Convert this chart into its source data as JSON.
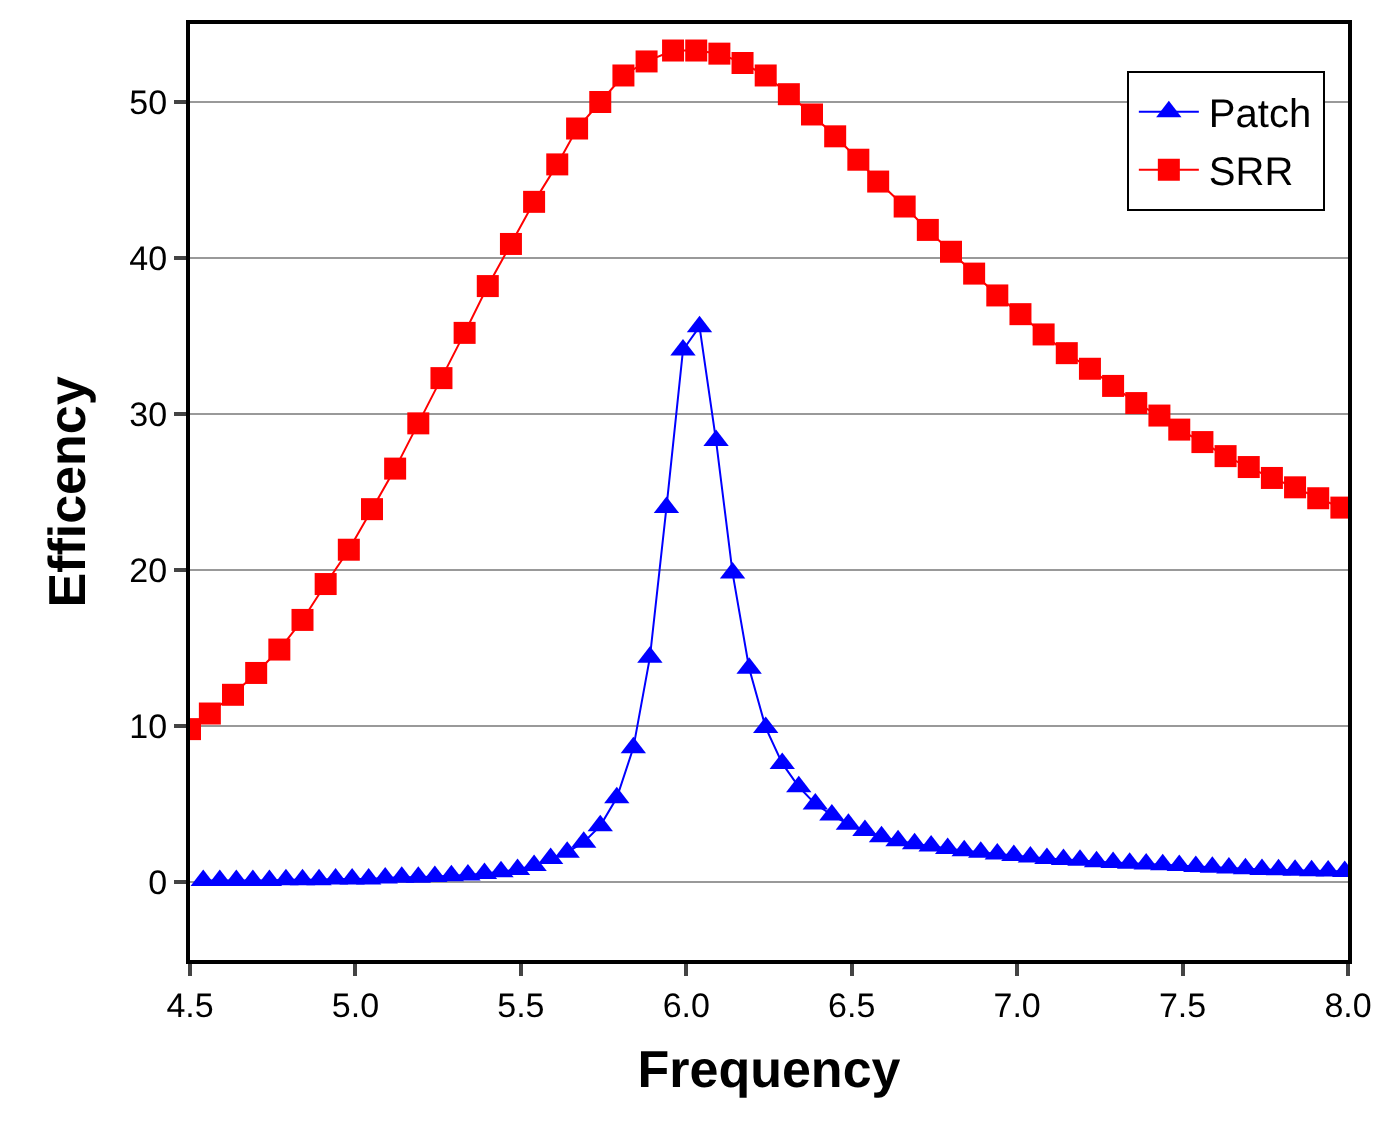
{
  "chart_data": {
    "type": "line",
    "xlabel": "Frequency",
    "ylabel": "Efficency",
    "xlim": [
      4.5,
      8.0
    ],
    "xticks": [
      {
        "value": 4.5,
        "label": "4.5"
      },
      {
        "value": 5.0,
        "label": "5.0"
      },
      {
        "value": 5.5,
        "label": "5.5"
      },
      {
        "value": 6.0,
        "label": "6.0"
      },
      {
        "value": 6.5,
        "label": "6.5"
      },
      {
        "value": 7.0,
        "label": "7.0"
      },
      {
        "value": 7.5,
        "label": "7.5"
      },
      {
        "value": 8.0,
        "label": "8.0"
      }
    ],
    "ylim": [
      -5,
      55
    ],
    "yticks": [
      0,
      10,
      20,
      30,
      40,
      50
    ],
    "grid": "y",
    "legend": "top right",
    "line_style": "solid",
    "series": [
      {
        "name": "Patch",
        "color": "#0000ff",
        "marker": "triangle",
        "x": [
          4.54,
          4.59,
          4.64,
          4.69,
          4.74,
          4.79,
          4.84,
          4.89,
          4.94,
          4.99,
          5.04,
          5.09,
          5.14,
          5.19,
          5.24,
          5.29,
          5.34,
          5.39,
          5.44,
          5.49,
          5.54,
          5.59,
          5.64,
          5.69,
          5.74,
          5.79,
          5.84,
          5.89,
          5.94,
          5.99,
          6.04,
          6.09,
          6.14,
          6.19,
          6.24,
          6.29,
          6.34,
          6.39,
          6.44,
          6.49,
          6.54,
          6.59,
          6.64,
          6.69,
          6.74,
          6.79,
          6.84,
          6.89,
          6.94,
          6.99,
          7.04,
          7.09,
          7.14,
          7.19,
          7.24,
          7.29,
          7.34,
          7.39,
          7.44,
          7.49,
          7.54,
          7.59,
          7.64,
          7.69,
          7.74,
          7.79,
          7.84,
          7.89,
          7.94,
          7.99
        ],
        "values": [
          0.1,
          0.1,
          0.1,
          0.1,
          0.1,
          0.15,
          0.15,
          0.15,
          0.2,
          0.2,
          0.2,
          0.25,
          0.3,
          0.3,
          0.35,
          0.4,
          0.45,
          0.55,
          0.65,
          0.8,
          1.06,
          1.5,
          1.9,
          2.55,
          3.6,
          5.4,
          8.6,
          14.4,
          24.0,
          34.1,
          35.6,
          28.3,
          19.8,
          13.7,
          9.9,
          7.6,
          6.1,
          5.0,
          4.3,
          3.7,
          3.3,
          2.9,
          2.65,
          2.45,
          2.3,
          2.15,
          2.0,
          1.9,
          1.8,
          1.7,
          1.6,
          1.5,
          1.45,
          1.4,
          1.3,
          1.25,
          1.2,
          1.15,
          1.1,
          1.05,
          1.0,
          0.95,
          0.9,
          0.85,
          0.8,
          0.78,
          0.75,
          0.72,
          0.7,
          0.68
        ]
      },
      {
        "name": "SRR",
        "color": "#ff0000",
        "marker": "square",
        "x": [
          4.5,
          4.56,
          4.63,
          4.7,
          4.77,
          4.84,
          4.91,
          4.98,
          5.05,
          5.12,
          5.19,
          5.26,
          5.33,
          5.4,
          5.47,
          5.54,
          5.61,
          5.67,
          5.74,
          5.81,
          5.88,
          5.96,
          6.03,
          6.1,
          6.17,
          6.24,
          6.31,
          6.38,
          6.45,
          6.52,
          6.58,
          6.66,
          6.73,
          6.8,
          6.87,
          6.94,
          7.01,
          7.08,
          7.15,
          7.22,
          7.29,
          7.36,
          7.43,
          7.49,
          7.56,
          7.63,
          7.7,
          7.77,
          7.84,
          7.91,
          7.98
        ],
        "values": [
          9.8,
          10.8,
          12.0,
          13.4,
          14.9,
          16.8,
          19.1,
          21.3,
          23.9,
          26.5,
          29.4,
          32.3,
          35.2,
          38.2,
          40.9,
          43.6,
          46.0,
          48.3,
          50.0,
          51.7,
          52.6,
          53.3,
          53.3,
          53.1,
          52.5,
          51.7,
          50.5,
          49.2,
          47.8,
          46.3,
          44.9,
          43.3,
          41.8,
          40.4,
          39.0,
          37.6,
          36.4,
          35.1,
          33.9,
          32.9,
          31.8,
          30.7,
          29.9,
          29.0,
          28.2,
          27.3,
          26.6,
          25.9,
          25.3,
          24.6,
          24.0
        ]
      }
    ]
  }
}
